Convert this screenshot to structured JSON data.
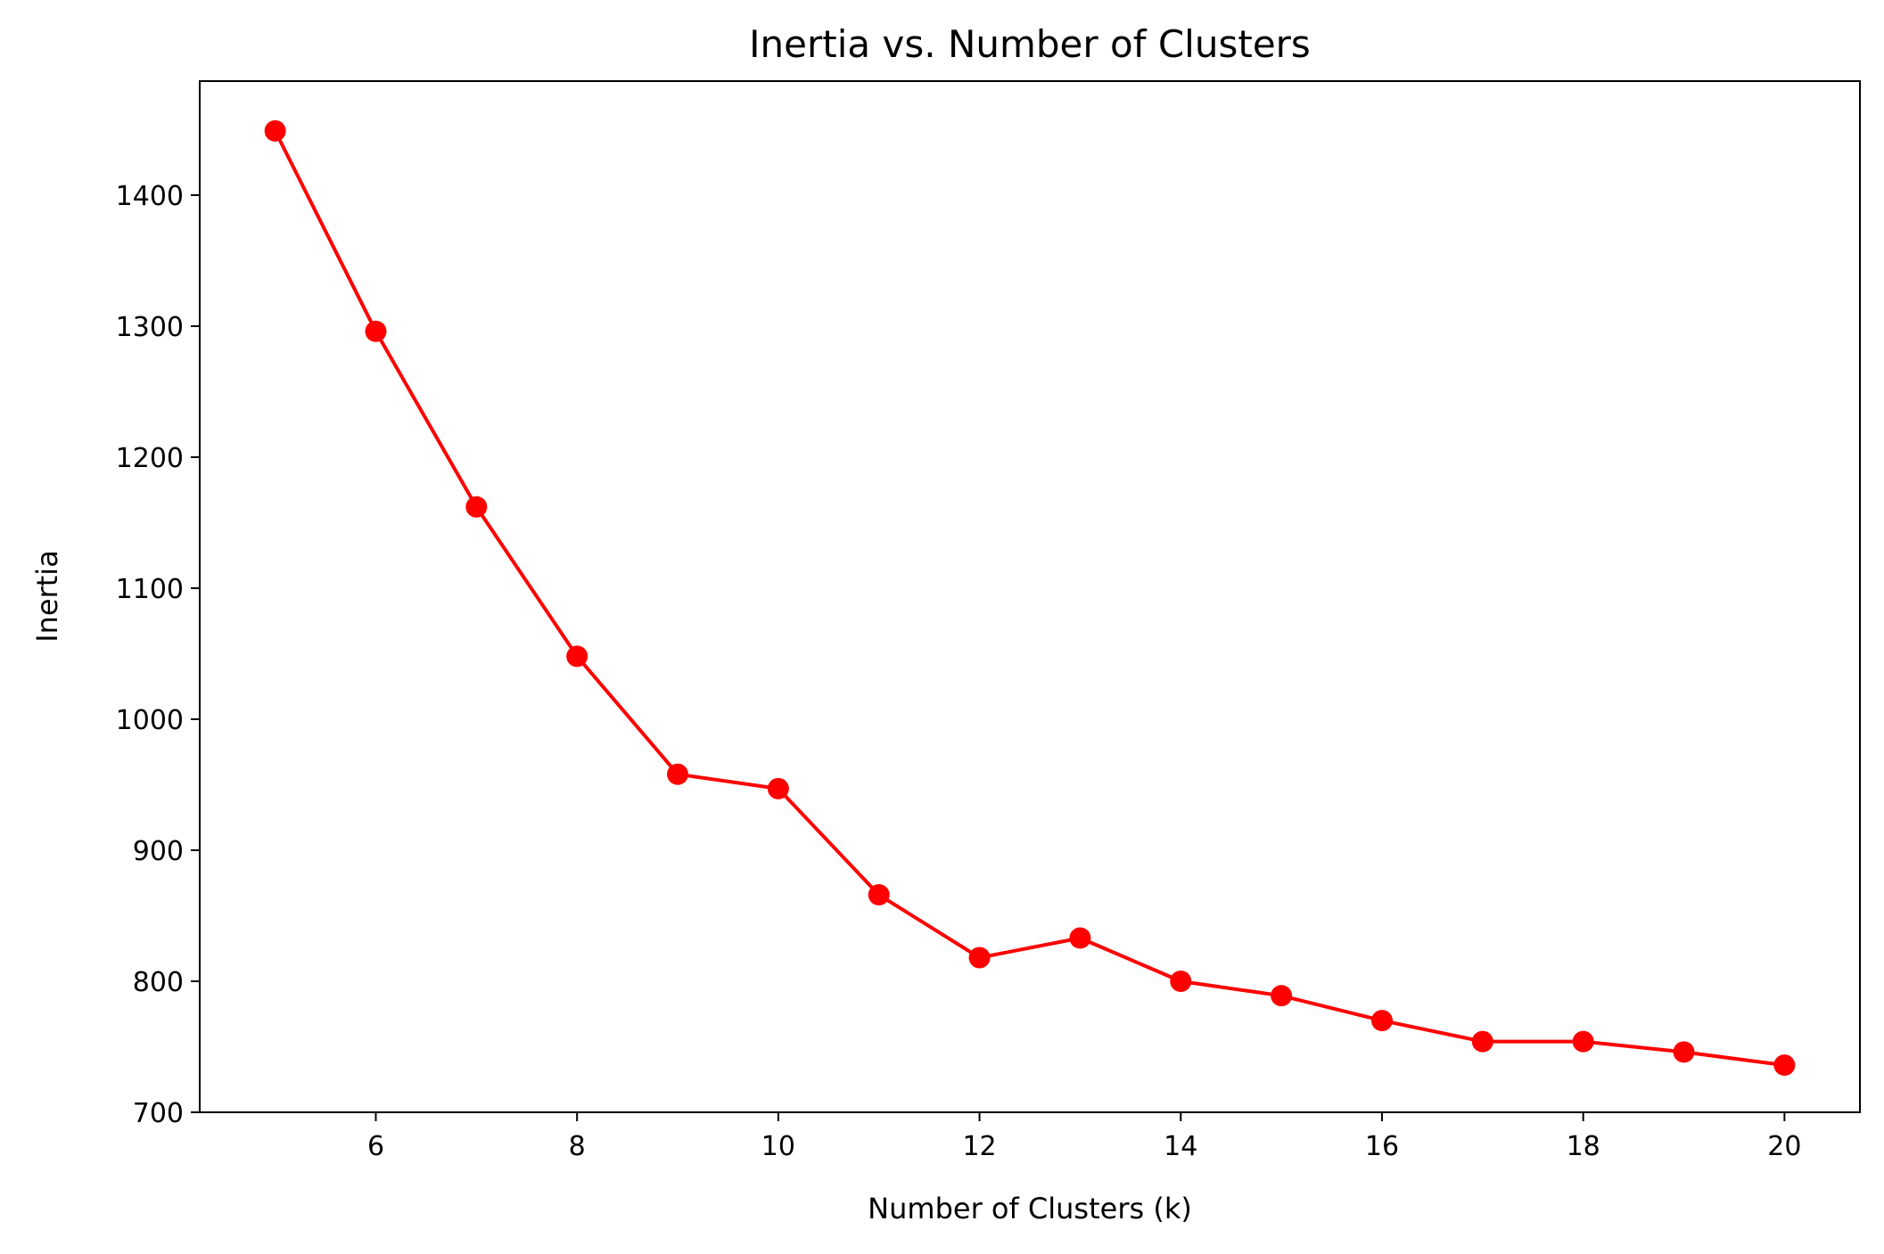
{
  "chart_data": {
    "type": "line",
    "title": "Inertia vs. Number of Clusters",
    "xlabel": "Number of Clusters (k)",
    "ylabel": "Inertia",
    "xlim": [
      4.25,
      20.75
    ],
    "ylim": [
      700,
      1487
    ],
    "xticks": [
      6,
      8,
      10,
      12,
      14,
      16,
      18,
      20
    ],
    "yticks": [
      700,
      800,
      900,
      1000,
      1100,
      1200,
      1300,
      1400
    ],
    "grid": false,
    "series": [
      {
        "color": "#ff0000",
        "marker": "circle",
        "x": [
          5,
          6,
          7,
          8,
          9,
          10,
          11,
          12,
          13,
          14,
          15,
          16,
          17,
          18,
          19,
          20
        ],
        "y": [
          1449,
          1296,
          1162,
          1048,
          958,
          947,
          866,
          818,
          833,
          800,
          789,
          770,
          754,
          754,
          746,
          736
        ]
      }
    ]
  }
}
